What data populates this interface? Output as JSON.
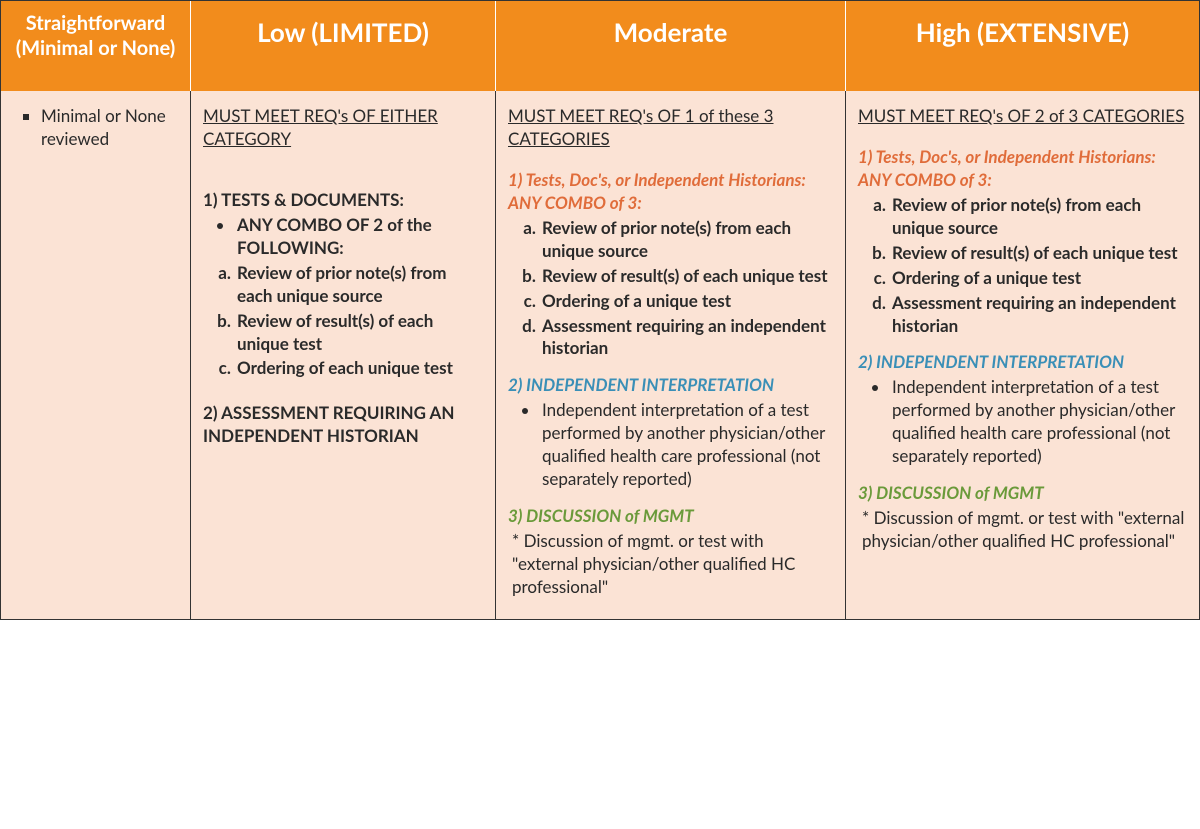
{
  "colors": {
    "header_bg": "#f28c1c",
    "header_text": "#ffffff",
    "body_bg": "#fbe3d5",
    "body_text": "#2a2a2a",
    "accent_orange": "#e06c3a",
    "accent_blue": "#3a8fb7",
    "accent_green": "#6a9a3a",
    "border": "#333333"
  },
  "headers": {
    "col0": "Straightforward (Minimal or None)",
    "col1": "Low (LIMITED)",
    "col2": "Moderate",
    "col3": "High (EXTENSIVE)"
  },
  "col0": {
    "bullet": "Minimal or None reviewed"
  },
  "col1": {
    "req": "MUST MEET REQ's OF EITHER CATEGORY",
    "s1_title": "1)  TESTS & DOCUMENTS:",
    "s1_sub": "ANY COMBO OF 2 of the FOLLOWING:",
    "s1_a": "Review of prior note(s) from each unique source",
    "s1_b": "Review of result(s) of each unique test",
    "s1_c": "Ordering of each unique test",
    "s2_title": "2) ASSESSMENT REQUIRING AN INDEPENDENT HISTORIAN"
  },
  "col2": {
    "req": "MUST MEET REQ's OF 1 of these 3 CATEGORIES",
    "s1_title": "1) Tests, Doc's, or Independent Historians: ANY COMBO of 3:",
    "s1_a": "Review of prior note(s) from each unique source",
    "s1_b": "Review of result(s) of each unique test",
    "s1_c": "Ordering of a unique test",
    "s1_d": "Assessment requiring an independent historian",
    "s2_title": "2) INDEPENDENT INTERPRETATION",
    "s2_bullet": "Independent interpretation of a test performed by another physician/other qualified health care professional (not separately reported)",
    "s3_title": "3) DISCUSSION of MGMT",
    "s3_text": "*  Discussion of mgmt. or test with \"external physician/other qualified HC professional\""
  },
  "col3": {
    "req": "MUST MEET REQ's OF 2 of 3 CATEGORIES",
    "s1_title": "1) Tests, Doc's, or Independent Historians: ANY COMBO of 3:",
    "s1_a": "Review of prior note(s) from each unique source",
    "s1_b": "Review of result(s) of each unique test",
    "s1_c": "Ordering of a unique test",
    "s1_d": "Assessment requiring an independent historian",
    "s2_title": "2) INDEPENDENT INTERPRETATION",
    "s2_bullet": "Independent interpretation of a test performed by another physician/other qualified health care professional (not separately reported)",
    "s3_title": "3) DISCUSSION of MGMT",
    "s3_text": "*  Discussion of mgmt. or test with \"external physician/other qualified HC professional\""
  }
}
